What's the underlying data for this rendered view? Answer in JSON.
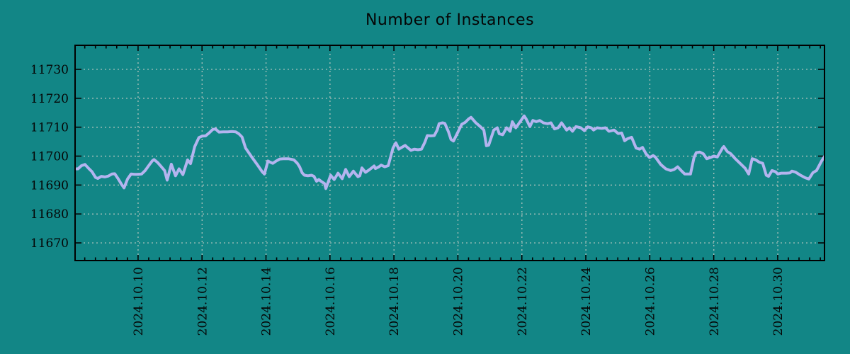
{
  "title": "Number of Instances",
  "colors": {
    "background": "#128686",
    "line": "#b4b4ef",
    "grid": "#c9cdc5",
    "axis": "#000000",
    "text": "#050505"
  },
  "chart_data": {
    "type": "line",
    "title": "Number of Instances",
    "series_name": "Number of Instances",
    "legend": "none",
    "grid": "dashed-major",
    "x_axis": {
      "label": "",
      "unit": "date",
      "tick_labels": [
        "2024.10.10",
        "2024.10.12",
        "2024.10.14",
        "2024.10.16",
        "2024.10.18",
        "2024.10.20",
        "2024.10.22",
        "2024.10.24",
        "2024.10.26",
        "2024.10.28",
        "2024.10.30"
      ],
      "tick_days": [
        10,
        12,
        14,
        16,
        18,
        20,
        22,
        24,
        26,
        28,
        30
      ],
      "minor_tick_interval_days": 0.3333,
      "range_day_of_month": [
        8.03,
        31.46
      ]
    },
    "y_axis": {
      "label": "",
      "tick_labels": [
        "11670",
        "11680",
        "11690",
        "11700",
        "11710",
        "11720",
        "11730"
      ],
      "tick_values": [
        11670,
        11680,
        11690,
        11700,
        11710,
        11720,
        11730
      ],
      "range": [
        11663.9,
        11738.3
      ]
    },
    "points": [
      [
        8.03,
        11695.6
      ],
      [
        8.12,
        11695.6
      ],
      [
        8.23,
        11696.7
      ],
      [
        8.34,
        11697.1
      ],
      [
        8.45,
        11695.8
      ],
      [
        8.56,
        11694.6
      ],
      [
        8.67,
        11692.6
      ],
      [
        8.74,
        11692.3
      ],
      [
        8.85,
        11693.0
      ],
      [
        8.96,
        11692.8
      ],
      [
        9.07,
        11693.1
      ],
      [
        9.18,
        11693.8
      ],
      [
        9.27,
        11693.9
      ],
      [
        9.38,
        11692.1
      ],
      [
        9.49,
        11690.1
      ],
      [
        9.56,
        11689.0
      ],
      [
        9.67,
        11692.1
      ],
      [
        9.78,
        11693.8
      ],
      [
        9.89,
        11693.7
      ],
      [
        10.0,
        11693.7
      ],
      [
        10.11,
        11693.8
      ],
      [
        10.22,
        11695.0
      ],
      [
        10.33,
        11696.7
      ],
      [
        10.44,
        11698.3
      ],
      [
        10.5,
        11698.8
      ],
      [
        10.61,
        11697.8
      ],
      [
        10.72,
        11696.4
      ],
      [
        10.83,
        11695.0
      ],
      [
        10.91,
        11691.7
      ],
      [
        11.04,
        11697.2
      ],
      [
        11.17,
        11693.2
      ],
      [
        11.28,
        11695.6
      ],
      [
        11.4,
        11693.6
      ],
      [
        11.55,
        11698.7
      ],
      [
        11.64,
        11697.4
      ],
      [
        11.77,
        11703.3
      ],
      [
        11.9,
        11706.4
      ],
      [
        12.0,
        11706.9
      ],
      [
        12.11,
        11707.0
      ],
      [
        12.22,
        11708.0
      ],
      [
        12.33,
        11709.2
      ],
      [
        12.42,
        11709.4
      ],
      [
        12.53,
        11708.3
      ],
      [
        12.66,
        11708.4
      ],
      [
        12.8,
        11708.4
      ],
      [
        12.93,
        11708.5
      ],
      [
        13.05,
        11708.4
      ],
      [
        13.15,
        11707.7
      ],
      [
        13.25,
        11706.6
      ],
      [
        13.36,
        11702.8
      ],
      [
        13.54,
        11699.9
      ],
      [
        13.73,
        11697.0
      ],
      [
        13.88,
        11694.6
      ],
      [
        13.95,
        11693.8
      ],
      [
        14.02,
        11696.7
      ],
      [
        14.06,
        11698.3
      ],
      [
        14.13,
        11697.9
      ],
      [
        14.21,
        11697.5
      ],
      [
        14.32,
        11698.3
      ],
      [
        14.43,
        11699.0
      ],
      [
        14.54,
        11699.1
      ],
      [
        14.7,
        11699.1
      ],
      [
        14.87,
        11698.7
      ],
      [
        14.98,
        11697.5
      ],
      [
        15.05,
        11696.3
      ],
      [
        15.13,
        11694.2
      ],
      [
        15.2,
        11693.4
      ],
      [
        15.31,
        11693.2
      ],
      [
        15.42,
        11693.4
      ],
      [
        15.5,
        11693.0
      ],
      [
        15.58,
        11691.3
      ],
      [
        15.65,
        11691.9
      ],
      [
        15.72,
        11691.3
      ],
      [
        15.83,
        11690.5
      ],
      [
        15.87,
        11688.8
      ],
      [
        16.02,
        11693.4
      ],
      [
        16.13,
        11691.9
      ],
      [
        16.25,
        11694.1
      ],
      [
        16.38,
        11692.2
      ],
      [
        16.49,
        11695.4
      ],
      [
        16.6,
        11692.9
      ],
      [
        16.73,
        11694.8
      ],
      [
        16.87,
        11692.9
      ],
      [
        16.93,
        11693.2
      ],
      [
        17.0,
        11695.9
      ],
      [
        17.11,
        11694.4
      ],
      [
        17.22,
        11695.2
      ],
      [
        17.38,
        11696.6
      ],
      [
        17.42,
        11695.7
      ],
      [
        17.53,
        11696.3
      ],
      [
        17.6,
        11696.9
      ],
      [
        17.71,
        11696.3
      ],
      [
        17.82,
        11696.7
      ],
      [
        17.97,
        11702.8
      ],
      [
        18.06,
        11704.6
      ],
      [
        18.15,
        11702.4
      ],
      [
        18.24,
        11703.0
      ],
      [
        18.35,
        11703.7
      ],
      [
        18.42,
        11703.0
      ],
      [
        18.53,
        11702.0
      ],
      [
        18.64,
        11702.4
      ],
      [
        18.75,
        11702.2
      ],
      [
        18.86,
        11702.4
      ],
      [
        18.97,
        11704.9
      ],
      [
        19.04,
        11707.1
      ],
      [
        19.15,
        11707.0
      ],
      [
        19.26,
        11707.1
      ],
      [
        19.35,
        11709.0
      ],
      [
        19.41,
        11711.2
      ],
      [
        19.52,
        11711.5
      ],
      [
        19.59,
        11711.3
      ],
      [
        19.7,
        11708.5
      ],
      [
        19.78,
        11705.8
      ],
      [
        19.86,
        11705.2
      ],
      [
        20.03,
        11709.0
      ],
      [
        20.12,
        11711.0
      ],
      [
        20.23,
        11711.7
      ],
      [
        20.33,
        11712.8
      ],
      [
        20.41,
        11713.4
      ],
      [
        20.55,
        11711.6
      ],
      [
        20.7,
        11710.2
      ],
      [
        20.81,
        11709.0
      ],
      [
        20.89,
        11703.6
      ],
      [
        20.96,
        11703.8
      ],
      [
        21.12,
        11709.0
      ],
      [
        21.23,
        11709.8
      ],
      [
        21.29,
        11707.7
      ],
      [
        21.4,
        11707.4
      ],
      [
        21.52,
        11709.8
      ],
      [
        21.63,
        11708.6
      ],
      [
        21.7,
        11711.9
      ],
      [
        21.81,
        11709.8
      ],
      [
        21.95,
        11712.0
      ],
      [
        22.07,
        11713.9
      ],
      [
        22.14,
        11712.7
      ],
      [
        22.25,
        11710.2
      ],
      [
        22.34,
        11712.3
      ],
      [
        22.45,
        11711.9
      ],
      [
        22.56,
        11712.3
      ],
      [
        22.67,
        11711.5
      ],
      [
        22.8,
        11711.2
      ],
      [
        22.91,
        11711.5
      ],
      [
        23.02,
        11709.4
      ],
      [
        23.13,
        11709.8
      ],
      [
        23.24,
        11711.5
      ],
      [
        23.4,
        11709.0
      ],
      [
        23.49,
        11709.8
      ],
      [
        23.58,
        11708.6
      ],
      [
        23.69,
        11710.2
      ],
      [
        23.84,
        11709.8
      ],
      [
        23.95,
        11708.8
      ],
      [
        24.06,
        11710.1
      ],
      [
        24.17,
        11709.8
      ],
      [
        24.24,
        11709.0
      ],
      [
        24.35,
        11709.8
      ],
      [
        24.5,
        11709.6
      ],
      [
        24.61,
        11709.8
      ],
      [
        24.72,
        11708.6
      ],
      [
        24.88,
        11709.0
      ],
      [
        25.01,
        11707.8
      ],
      [
        25.12,
        11708.0
      ],
      [
        25.21,
        11705.3
      ],
      [
        25.3,
        11706.0
      ],
      [
        25.43,
        11706.5
      ],
      [
        25.57,
        11702.8
      ],
      [
        25.68,
        11702.4
      ],
      [
        25.77,
        11703.0
      ],
      [
        25.88,
        11700.8
      ],
      [
        25.99,
        11699.5
      ],
      [
        26.1,
        11700.2
      ],
      [
        26.17,
        11699.7
      ],
      [
        26.34,
        11697.1
      ],
      [
        26.5,
        11695.6
      ],
      [
        26.65,
        11695.0
      ],
      [
        26.76,
        11695.4
      ],
      [
        26.87,
        11696.3
      ],
      [
        26.98,
        11695.0
      ],
      [
        27.09,
        11693.8
      ],
      [
        27.27,
        11693.8
      ],
      [
        27.38,
        11699.5
      ],
      [
        27.45,
        11701.2
      ],
      [
        27.56,
        11701.4
      ],
      [
        27.67,
        11700.8
      ],
      [
        27.78,
        11699.1
      ],
      [
        27.89,
        11699.5
      ],
      [
        28.0,
        11700.0
      ],
      [
        28.11,
        11699.7
      ],
      [
        28.27,
        11702.8
      ],
      [
        28.31,
        11703.3
      ],
      [
        28.42,
        11701.6
      ],
      [
        28.53,
        11700.8
      ],
      [
        28.67,
        11699.1
      ],
      [
        28.82,
        11697.5
      ],
      [
        28.98,
        11695.8
      ],
      [
        29.09,
        11693.8
      ],
      [
        29.2,
        11699.1
      ],
      [
        29.31,
        11698.7
      ],
      [
        29.42,
        11697.9
      ],
      [
        29.53,
        11697.5
      ],
      [
        29.64,
        11693.4
      ],
      [
        29.71,
        11693.0
      ],
      [
        29.82,
        11695.0
      ],
      [
        29.93,
        11694.6
      ],
      [
        30.0,
        11693.8
      ],
      [
        30.11,
        11694.1
      ],
      [
        30.27,
        11694.1
      ],
      [
        30.38,
        11694.2
      ],
      [
        30.44,
        11694.8
      ],
      [
        30.55,
        11694.5
      ],
      [
        30.71,
        11693.4
      ],
      [
        30.86,
        11692.5
      ],
      [
        30.97,
        11692.1
      ],
      [
        31.1,
        11694.3
      ],
      [
        31.21,
        11695.0
      ],
      [
        31.37,
        11698.3
      ],
      [
        31.46,
        11699.9
      ]
    ]
  }
}
